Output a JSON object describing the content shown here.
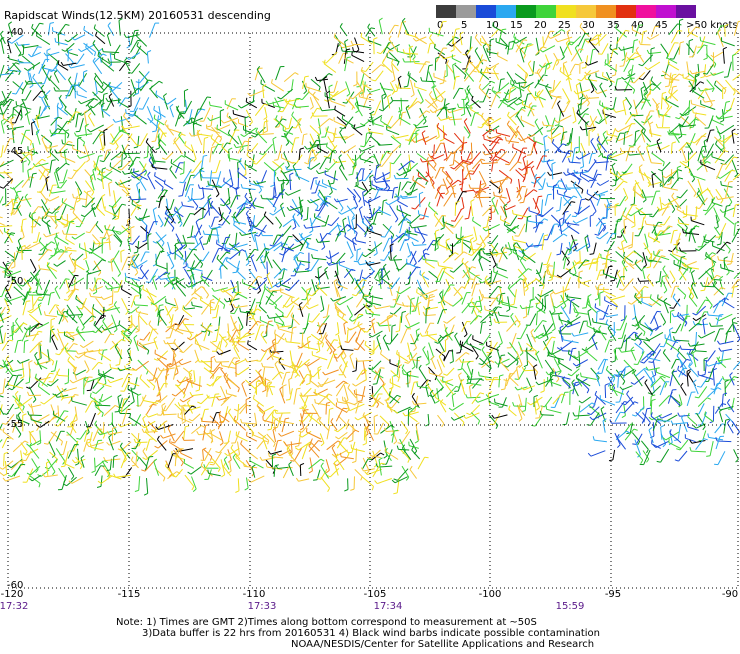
{
  "title": "Rapidscat Winds(12.5KM) 20160531 descending",
  "scale": {
    "labels": [
      "0",
      "5",
      "10",
      "15",
      "20",
      "25",
      "30",
      "35",
      "40",
      "45",
      ">50 knots"
    ],
    "colors": [
      "#3c3c3c",
      "#9a9a9a",
      "#1a4bd8",
      "#2aa8f0",
      "#0a9a1e",
      "#3fd43a",
      "#f0e020",
      "#f6c83a",
      "#f09020",
      "#e23010",
      "#f0109e",
      "#c010d0",
      "#6a10a0"
    ]
  },
  "map": {
    "lat_labels": [
      "-40",
      "-45",
      "-50",
      "-55",
      "-60"
    ],
    "lon_labels": [
      "-120",
      "-115",
      "-110",
      "-105",
      "-100",
      "-95",
      "-90"
    ],
    "time_labels": [
      "17:32",
      "17:33",
      "17:34",
      "15:59"
    ]
  },
  "notes": {
    "line1": "Note: 1) Times are GMT 2)Times along bottom correspond to measurement at ~50S",
    "line2": "3)Data buffer is 22 hrs from 20160531 4) Black wind barbs indicate possible contamination",
    "line3": "NOAA/NESDIS/Center for Satellite Applications and Research"
  },
  "colors": {
    "time_text": "#5a1a8a",
    "grid": "#000000"
  }
}
